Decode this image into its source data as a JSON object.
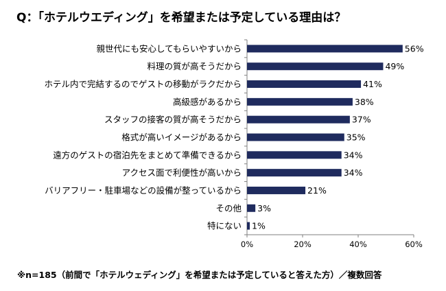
{
  "title": "Q：「ホテルウエディング」を希望または予定している理由は？",
  "footnote": "※n=185（前間で「ホテルウェディング」を希望または予定していると答えた方）／複数回答",
  "colors": {
    "bar": "#1f2b5e",
    "axis": "#7f7f7f",
    "grid": "#bfbfbf"
  },
  "chart_data": {
    "type": "bar",
    "orientation": "horizontal",
    "categories": [
      "親世代にも安心してもらいやすいから",
      "料理の質が高そうだから",
      "ホテル内で完結するのでゲストの移動がラクだから",
      "高級感があるから",
      "スタッフの接客の質が高そうだから",
      "格式が高いイメージがあるから",
      "遠方のゲストの宿泊先をまとめて準備できるから",
      "アクセス面で利便性が高いから",
      "バリアフリー・駐車場などの設備が整っているから",
      "その他",
      "特にない"
    ],
    "values": [
      56,
      49,
      41,
      38,
      37,
      35,
      34,
      34,
      21,
      3,
      1
    ],
    "value_labels": [
      "56%",
      "49%",
      "41%",
      "38%",
      "37%",
      "35%",
      "34%",
      "34%",
      "21%",
      "3%",
      "1%"
    ],
    "xlim": [
      0,
      60
    ],
    "ticks": [
      0,
      20,
      40,
      60
    ],
    "tick_labels": [
      "0%",
      "20%",
      "40%",
      "60%"
    ],
    "grid": false,
    "legend": "none"
  }
}
